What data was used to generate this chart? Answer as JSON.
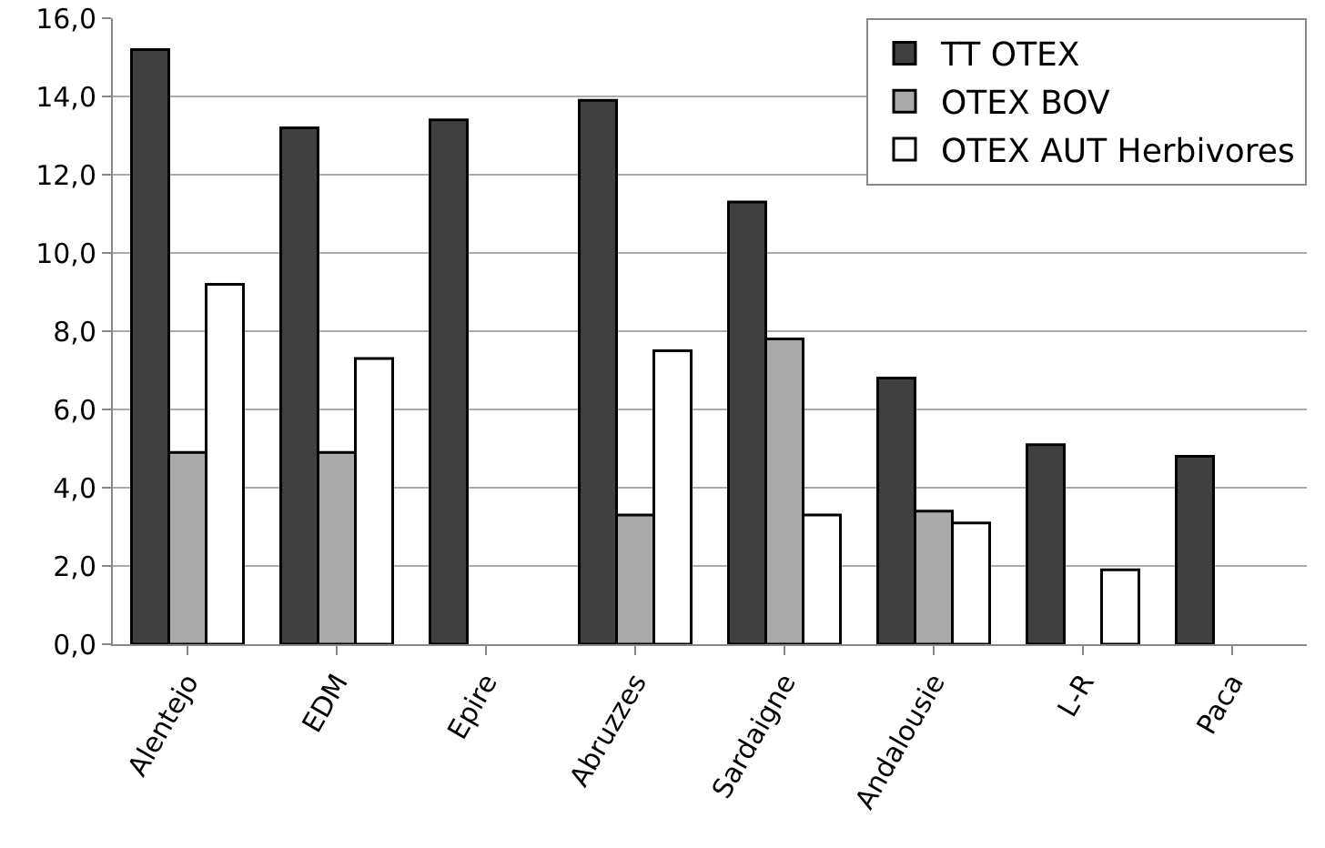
{
  "chart_data": {
    "type": "bar",
    "categories": [
      "Alentejo",
      "EDM",
      "Epire",
      "Abruzzes",
      "Sardaigne",
      "Andalousie",
      "L-R",
      "Paca"
    ],
    "series": [
      {
        "name": "TT OTEX",
        "color": "#404040",
        "values": [
          15.2,
          13.2,
          13.4,
          13.9,
          11.3,
          6.8,
          5.1,
          4.8
        ]
      },
      {
        "name": "OTEX BOV",
        "color": "#aaaaaa",
        "values": [
          4.9,
          4.9,
          null,
          3.3,
          7.8,
          3.4,
          null,
          null
        ]
      },
      {
        "name": "OTEX AUT Herbivores",
        "color": "#ffffff",
        "values": [
          9.2,
          7.3,
          null,
          7.5,
          3.3,
          3.1,
          1.9,
          null
        ]
      }
    ],
    "ylim": [
      0,
      16
    ],
    "yticks": [
      {
        "value": 0,
        "label": "0,0"
      },
      {
        "value": 2,
        "label": "2,0"
      },
      {
        "value": 4,
        "label": "4,0"
      },
      {
        "value": 6,
        "label": "6,0"
      },
      {
        "value": 8,
        "label": "8,0"
      },
      {
        "value": 10,
        "label": "10,0"
      },
      {
        "value": 12,
        "label": "12,0"
      },
      {
        "value": 14,
        "label": "14,0"
      },
      {
        "value": 16,
        "label": "16,0"
      }
    ],
    "grid": "y",
    "legend": "top right"
  }
}
